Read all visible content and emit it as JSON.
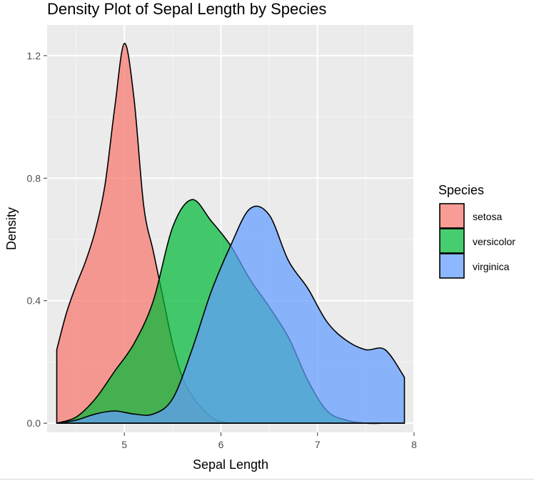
{
  "chart_data": {
    "type": "area",
    "title": "Density Plot of Sepal Length by Species",
    "xlabel": "Sepal Length",
    "ylabel": "Density",
    "xlim": [
      4.2,
      8.0
    ],
    "ylim": [
      -0.03,
      1.3
    ],
    "x_ticks": [
      "5",
      "6",
      "7",
      "8"
    ],
    "y_ticks": [
      "0.0",
      "0.4",
      "0.8",
      "1.2"
    ],
    "grid": true,
    "legend": {
      "title": "Species",
      "placement": "right"
    },
    "series": [
      {
        "name": "setosa",
        "color": "#F8766D",
        "x": [
          4.3,
          4.4,
          4.5,
          4.6,
          4.7,
          4.8,
          4.9,
          5.0,
          5.1,
          5.2,
          5.3,
          5.4,
          5.5,
          5.6,
          5.7,
          5.8,
          5.9,
          6.0,
          6.1
        ],
        "y": [
          0.24,
          0.36,
          0.45,
          0.53,
          0.63,
          0.78,
          1.03,
          1.24,
          1.06,
          0.71,
          0.56,
          0.41,
          0.26,
          0.15,
          0.09,
          0.05,
          0.02,
          0.005,
          0.0
        ]
      },
      {
        "name": "versicolor",
        "color": "#00BA38",
        "x": [
          4.3,
          4.5,
          4.7,
          4.9,
          5.1,
          5.3,
          5.5,
          5.7,
          5.9,
          6.1,
          6.3,
          6.5,
          6.7,
          6.9,
          7.1,
          7.3,
          7.5,
          7.7,
          7.9
        ],
        "y": [
          0.0,
          0.02,
          0.08,
          0.17,
          0.26,
          0.4,
          0.64,
          0.73,
          0.66,
          0.58,
          0.47,
          0.38,
          0.28,
          0.14,
          0.04,
          0.01,
          0.0,
          0.0,
          0.0
        ]
      },
      {
        "name": "virginica",
        "color": "#619CFF",
        "x": [
          4.3,
          4.5,
          4.7,
          4.9,
          5.1,
          5.3,
          5.5,
          5.7,
          5.9,
          6.1,
          6.3,
          6.5,
          6.7,
          6.9,
          7.1,
          7.3,
          7.5,
          7.7,
          7.9
        ],
        "y": [
          0.0,
          0.01,
          0.03,
          0.04,
          0.03,
          0.03,
          0.08,
          0.24,
          0.43,
          0.58,
          0.7,
          0.68,
          0.53,
          0.44,
          0.33,
          0.27,
          0.24,
          0.24,
          0.15
        ]
      }
    ]
  }
}
